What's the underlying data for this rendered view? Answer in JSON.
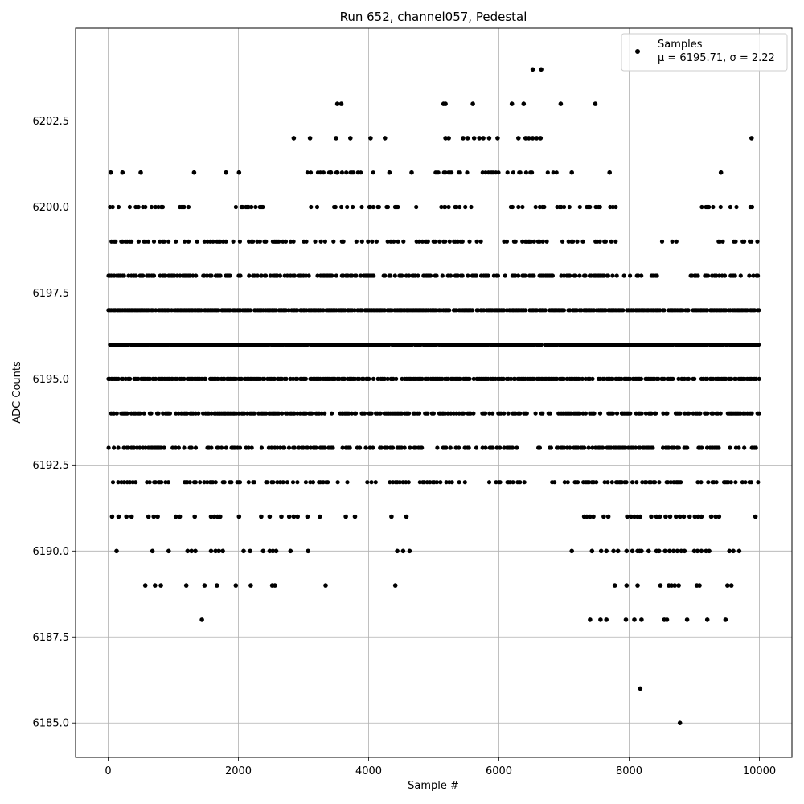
{
  "chart_data": {
    "type": "scatter",
    "title": "Run 652, channel057, Pedestal",
    "xlabel": "Sample #",
    "ylabel": "ADC Counts",
    "xlim": [
      -500,
      10500
    ],
    "ylim": [
      6184.0,
      6205.2
    ],
    "xticks": [
      0,
      2000,
      4000,
      6000,
      8000,
      10000
    ],
    "xtick_labels": [
      "0",
      "2000",
      "4000",
      "6000",
      "8000",
      "10000"
    ],
    "yticks": [
      6185.0,
      6187.5,
      6190.0,
      6192.5,
      6195.0,
      6197.5,
      6200.0,
      6202.5
    ],
    "ytick_labels": [
      "6185.0",
      "6187.5",
      "6190.0",
      "6192.5",
      "6195.0",
      "6197.5",
      "6200.0",
      "6202.5"
    ],
    "grid": true,
    "marker_color": "#000000",
    "legend": {
      "placement": "top-right",
      "series_name": "Samples",
      "stats_text": "μ = 6195.71, σ = 2.22"
    },
    "series": [
      {
        "name": "Samples",
        "points": [
          [
            6520,
            6204
          ],
          [
            6650,
            6204
          ],
          [
            3520,
            6203
          ],
          [
            3580,
            6203
          ],
          [
            5150,
            6203
          ],
          [
            5180,
            6203
          ],
          [
            5600,
            6203
          ],
          [
            6200,
            6203
          ],
          [
            6380,
            6203
          ],
          [
            6950,
            6203
          ],
          [
            7480,
            6203
          ],
          [
            2850,
            6202
          ],
          [
            3100,
            6202
          ],
          [
            3500,
            6202
          ],
          [
            3720,
            6202
          ],
          [
            4030,
            6202
          ],
          [
            4250,
            6202
          ],
          [
            5180,
            6202
          ],
          [
            5230,
            6202
          ],
          [
            5450,
            6202
          ],
          [
            5520,
            6202
          ],
          [
            5620,
            6202
          ],
          [
            5700,
            6202
          ],
          [
            5760,
            6202
          ],
          [
            5850,
            6202
          ],
          [
            5980,
            6202
          ],
          [
            6300,
            6202
          ],
          [
            6410,
            6202
          ],
          [
            6460,
            6202
          ],
          [
            6520,
            6202
          ],
          [
            6580,
            6202
          ],
          [
            6640,
            6202
          ],
          [
            9880,
            6202
          ],
          [
            40,
            6201
          ],
          [
            220,
            6201
          ],
          [
            500,
            6201
          ],
          [
            1320,
            6201
          ],
          [
            1810,
            6201
          ],
          [
            2010,
            6201
          ],
          [
            3420,
            6201
          ],
          [
            3520,
            6201
          ],
          [
            4320,
            6201
          ],
          [
            4660,
            6201
          ],
          [
            7120,
            6201
          ],
          [
            7700,
            6201
          ],
          [
            9410,
            6201
          ],
          [
            8780,
            6185
          ],
          [
            8170,
            6186
          ],
          [
            1440,
            6188
          ],
          [
            7400,
            6188
          ],
          [
            7560,
            6188
          ],
          [
            7650,
            6188
          ],
          [
            7950,
            6188
          ],
          [
            8080,
            6188
          ],
          [
            8190,
            6188
          ],
          [
            8540,
            6188
          ],
          [
            8580,
            6188
          ],
          [
            8890,
            6188
          ],
          [
            9200,
            6188
          ],
          [
            9480,
            6188
          ],
          [
            570,
            6189
          ],
          [
            720,
            6189
          ],
          [
            810,
            6189
          ],
          [
            1200,
            6189
          ],
          [
            1480,
            6189
          ],
          [
            1670,
            6189
          ],
          [
            1960,
            6189
          ],
          [
            2190,
            6189
          ],
          [
            2520,
            6189
          ],
          [
            2560,
            6189
          ],
          [
            3340,
            6189
          ],
          [
            4410,
            6189
          ],
          [
            7780,
            6189
          ],
          [
            7960,
            6189
          ],
          [
            8130,
            6189
          ],
          [
            8480,
            6189
          ],
          [
            8610,
            6189
          ],
          [
            8650,
            6189
          ],
          [
            8700,
            6189
          ],
          [
            8760,
            6189
          ],
          [
            9040,
            6189
          ],
          [
            9080,
            6189
          ],
          [
            9510,
            6189
          ],
          [
            9570,
            6189
          ],
          [
            130,
            6190
          ],
          [
            680,
            6190
          ],
          [
            930,
            6190
          ],
          [
            1220,
            6190
          ],
          [
            1280,
            6190
          ],
          [
            1340,
            6190
          ],
          [
            1580,
            6190
          ],
          [
            1650,
            6190
          ],
          [
            1700,
            6190
          ],
          [
            1760,
            6190
          ],
          [
            2080,
            6190
          ],
          [
            2180,
            6190
          ],
          [
            2380,
            6190
          ],
          [
            2480,
            6190
          ],
          [
            2530,
            6190
          ],
          [
            2580,
            6190
          ],
          [
            2800,
            6190
          ],
          [
            3070,
            6190
          ],
          [
            4440,
            6190
          ],
          [
            4530,
            6190
          ],
          [
            4630,
            6190
          ],
          [
            7120,
            6190
          ],
          [
            7430,
            6190
          ],
          [
            7570,
            6190
          ],
          [
            7650,
            6190
          ],
          [
            7760,
            6190
          ],
          [
            7830,
            6190
          ],
          [
            7960,
            6190
          ],
          [
            8050,
            6190
          ],
          [
            8130,
            6190
          ],
          [
            8160,
            6190
          ],
          [
            8190,
            6190
          ],
          [
            8300,
            6190
          ],
          [
            8420,
            6190
          ],
          [
            8460,
            6190
          ],
          [
            8550,
            6190
          ],
          [
            8620,
            6190
          ],
          [
            8680,
            6190
          ],
          [
            8740,
            6190
          ],
          [
            8800,
            6190
          ],
          [
            8850,
            6190
          ],
          [
            9000,
            6190
          ],
          [
            9050,
            6190
          ],
          [
            9110,
            6190
          ],
          [
            9180,
            6190
          ],
          [
            9230,
            6190
          ],
          [
            9540,
            6190
          ],
          [
            9600,
            6190
          ],
          [
            9690,
            6190
          ],
          [
            60,
            6191
          ],
          [
            160,
            6191
          ],
          [
            280,
            6191
          ],
          [
            360,
            6191
          ],
          [
            620,
            6191
          ],
          [
            700,
            6191
          ],
          [
            760,
            6191
          ],
          [
            1040,
            6191
          ],
          [
            1100,
            6191
          ],
          [
            1330,
            6191
          ],
          [
            1580,
            6191
          ],
          [
            1630,
            6191
          ],
          [
            1680,
            6191
          ],
          [
            1720,
            6191
          ],
          [
            2010,
            6191
          ],
          [
            2350,
            6191
          ],
          [
            2480,
            6191
          ],
          [
            2660,
            6191
          ],
          [
            2780,
            6191
          ],
          [
            2850,
            6191
          ],
          [
            2910,
            6191
          ],
          [
            3060,
            6191
          ],
          [
            3250,
            6191
          ],
          [
            3650,
            6191
          ],
          [
            3790,
            6191
          ],
          [
            4350,
            6191
          ],
          [
            4580,
            6191
          ],
          [
            7310,
            6191
          ],
          [
            7350,
            6191
          ],
          [
            7400,
            6191
          ],
          [
            7450,
            6191
          ],
          [
            7610,
            6191
          ],
          [
            7680,
            6191
          ],
          [
            7970,
            6191
          ],
          [
            8030,
            6191
          ],
          [
            8080,
            6191
          ],
          [
            8130,
            6191
          ],
          [
            8170,
            6191
          ],
          [
            8340,
            6191
          ],
          [
            8420,
            6191
          ],
          [
            8470,
            6191
          ],
          [
            8560,
            6191
          ],
          [
            8630,
            6191
          ],
          [
            8720,
            6191
          ],
          [
            8780,
            6191
          ],
          [
            8840,
            6191
          ],
          [
            8930,
            6191
          ],
          [
            9010,
            6191
          ],
          [
            9060,
            6191
          ],
          [
            9110,
            6191
          ],
          [
            9260,
            6191
          ],
          [
            9330,
            6191
          ],
          [
            9380,
            6191
          ],
          [
            9940,
            6191
          ]
        ]
      }
    ],
    "dense_rows": [
      {
        "y": 6201,
        "segments": [
          [
            3060,
            3960
          ],
          [
            4000,
            4080
          ],
          [
            4980,
            6000
          ],
          [
            6130,
            6880
          ]
        ],
        "density": 0.28
      },
      {
        "y": 6200,
        "segments": [
          [
            0,
            1320
          ],
          [
            1800,
            2400
          ],
          [
            2850,
            3780
          ],
          [
            3850,
            4740
          ],
          [
            4740,
            5280
          ],
          [
            5150,
            7000
          ],
          [
            7040,
            7550
          ],
          [
            7680,
            7900
          ],
          [
            9090,
            9990
          ]
        ],
        "density": 0.26
      },
      {
        "y": 6199,
        "segments": [
          [
            0,
            1950
          ],
          [
            2000,
            2800
          ],
          [
            2800,
            3500
          ],
          [
            3500,
            7550
          ],
          [
            7550,
            7850
          ],
          [
            8480,
            8780
          ],
          [
            9280,
            10000
          ]
        ],
        "density": 0.32
      },
      {
        "y": 6198,
        "segments": [
          [
            0,
            8430
          ],
          [
            8850,
            10000
          ]
        ],
        "density": 0.55
      },
      {
        "y": 6197,
        "segments": [
          [
            0,
            10000
          ]
        ],
        "density": 0.85
      },
      {
        "y": 6196,
        "segments": [
          [
            0,
            10000
          ]
        ],
        "density": 0.95
      },
      {
        "y": 6195,
        "segments": [
          [
            0,
            10000
          ]
        ],
        "density": 0.78
      },
      {
        "y": 6194,
        "segments": [
          [
            0,
            3500
          ],
          [
            3560,
            4840
          ],
          [
            4860,
            5700
          ],
          [
            5700,
            6470
          ],
          [
            6560,
            10000
          ]
        ],
        "density": 0.58
      },
      {
        "y": 6193,
        "segments": [
          [
            0,
            3340
          ],
          [
            3380,
            3460
          ],
          [
            3600,
            5080
          ],
          [
            5120,
            5680
          ],
          [
            5700,
            6300
          ],
          [
            6600,
            10000
          ]
        ],
        "density": 0.46
      },
      {
        "y": 6192,
        "segments": [
          [
            0,
            3580
          ],
          [
            3580,
            3750
          ],
          [
            3950,
            4130
          ],
          [
            4300,
            5080
          ],
          [
            5100,
            5480
          ],
          [
            5780,
            5850
          ],
          [
            5950,
            6450
          ],
          [
            6700,
            10000
          ]
        ],
        "density": 0.36
      }
    ]
  }
}
